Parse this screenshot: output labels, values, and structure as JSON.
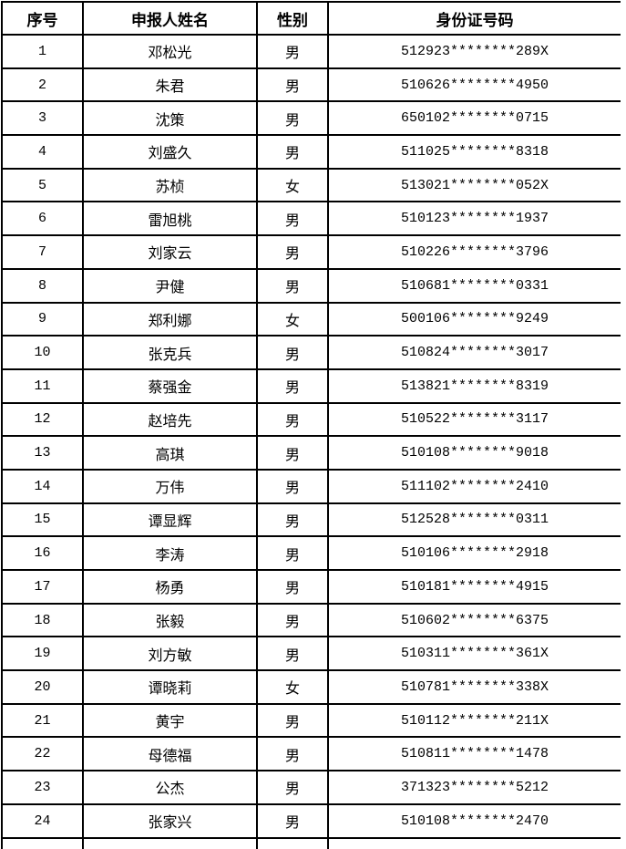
{
  "page": {
    "background": "#ffffff",
    "border_color": "#000000",
    "text_color": "#000000"
  },
  "table": {
    "headers": [
      "序号",
      "申报人姓名",
      "性别",
      "身份证号码"
    ],
    "rows": [
      {
        "seq": "1",
        "name": "邓松光",
        "gender": "男",
        "id_number": "512923********289X"
      },
      {
        "seq": "2",
        "name": "朱君",
        "gender": "男",
        "id_number": "510626********4950"
      },
      {
        "seq": "3",
        "name": "沈策",
        "gender": "男",
        "id_number": "650102********0715"
      },
      {
        "seq": "4",
        "name": "刘盛久",
        "gender": "男",
        "id_number": "511025********8318"
      },
      {
        "seq": "5",
        "name": "苏桢",
        "gender": "女",
        "id_number": "513021********052X"
      },
      {
        "seq": "6",
        "name": "雷旭桃",
        "gender": "男",
        "id_number": "510123********1937"
      },
      {
        "seq": "7",
        "name": "刘家云",
        "gender": "男",
        "id_number": "510226********3796"
      },
      {
        "seq": "8",
        "name": "尹健",
        "gender": "男",
        "id_number": "510681********0331"
      },
      {
        "seq": "9",
        "name": "郑利娜",
        "gender": "女",
        "id_number": "500106********9249"
      },
      {
        "seq": "10",
        "name": "张克兵",
        "gender": "男",
        "id_number": "510824********3017"
      },
      {
        "seq": "11",
        "name": "蔡强金",
        "gender": "男",
        "id_number": "513821********8319"
      },
      {
        "seq": "12",
        "name": "赵培先",
        "gender": "男",
        "id_number": "510522********3117"
      },
      {
        "seq": "13",
        "name": "高琪",
        "gender": "男",
        "id_number": "510108********9018"
      },
      {
        "seq": "14",
        "name": "万伟",
        "gender": "男",
        "id_number": "511102********2410"
      },
      {
        "seq": "15",
        "name": "谭显辉",
        "gender": "男",
        "id_number": "512528********0311"
      },
      {
        "seq": "16",
        "name": "李涛",
        "gender": "男",
        "id_number": "510106********2918"
      },
      {
        "seq": "17",
        "name": "杨勇",
        "gender": "男",
        "id_number": "510181********4915"
      },
      {
        "seq": "18",
        "name": "张毅",
        "gender": "男",
        "id_number": "510602********6375"
      },
      {
        "seq": "19",
        "name": "刘方敏",
        "gender": "男",
        "id_number": "510311********361X"
      },
      {
        "seq": "20",
        "name": "谭晓莉",
        "gender": "女",
        "id_number": "510781********338X"
      },
      {
        "seq": "21",
        "name": "黄宇",
        "gender": "男",
        "id_number": "510112********211X"
      },
      {
        "seq": "22",
        "name": "母德福",
        "gender": "男",
        "id_number": "510811********1478"
      },
      {
        "seq": "23",
        "name": "公杰",
        "gender": "男",
        "id_number": "371323********5212"
      },
      {
        "seq": "24",
        "name": "张家兴",
        "gender": "男",
        "id_number": "510108********2470"
      }
    ]
  }
}
